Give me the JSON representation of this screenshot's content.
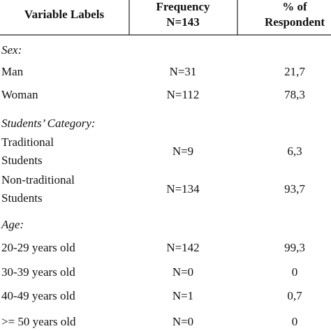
{
  "table": {
    "header": [
      "Variable Labels",
      [
        "Frequency",
        "N=143"
      ],
      [
        "% of",
        "Respondent"
      ]
    ],
    "rows": [
      {
        "section": "Sex:"
      },
      {
        "label": "Man",
        "frequency": "N=31",
        "percent": "21,7"
      },
      {
        "label": "Woman",
        "frequency": "N=112",
        "percent": "78,3"
      },
      {
        "section": "Students’ Category:"
      },
      {
        "label": [
          "Traditional",
          "Students"
        ],
        "frequency": "N=9",
        "percent": "6,3"
      },
      {
        "label": [
          "Non-traditional",
          "Students"
        ],
        "frequency": "N=134",
        "percent": "93,7"
      },
      {
        "section": "Age:"
      },
      {
        "label": "20-29 years old",
        "frequency": "N=142",
        "percent": "99,3"
      },
      {
        "label": "30-39 years old",
        "frequency": "N=0",
        "percent": "0"
      },
      {
        "label": "40-49 years old",
        "frequency": "N=1",
        "percent": "0,7"
      },
      {
        "label": ">= 50 years old",
        "frequency": "N=0",
        "percent": "0"
      }
    ]
  }
}
